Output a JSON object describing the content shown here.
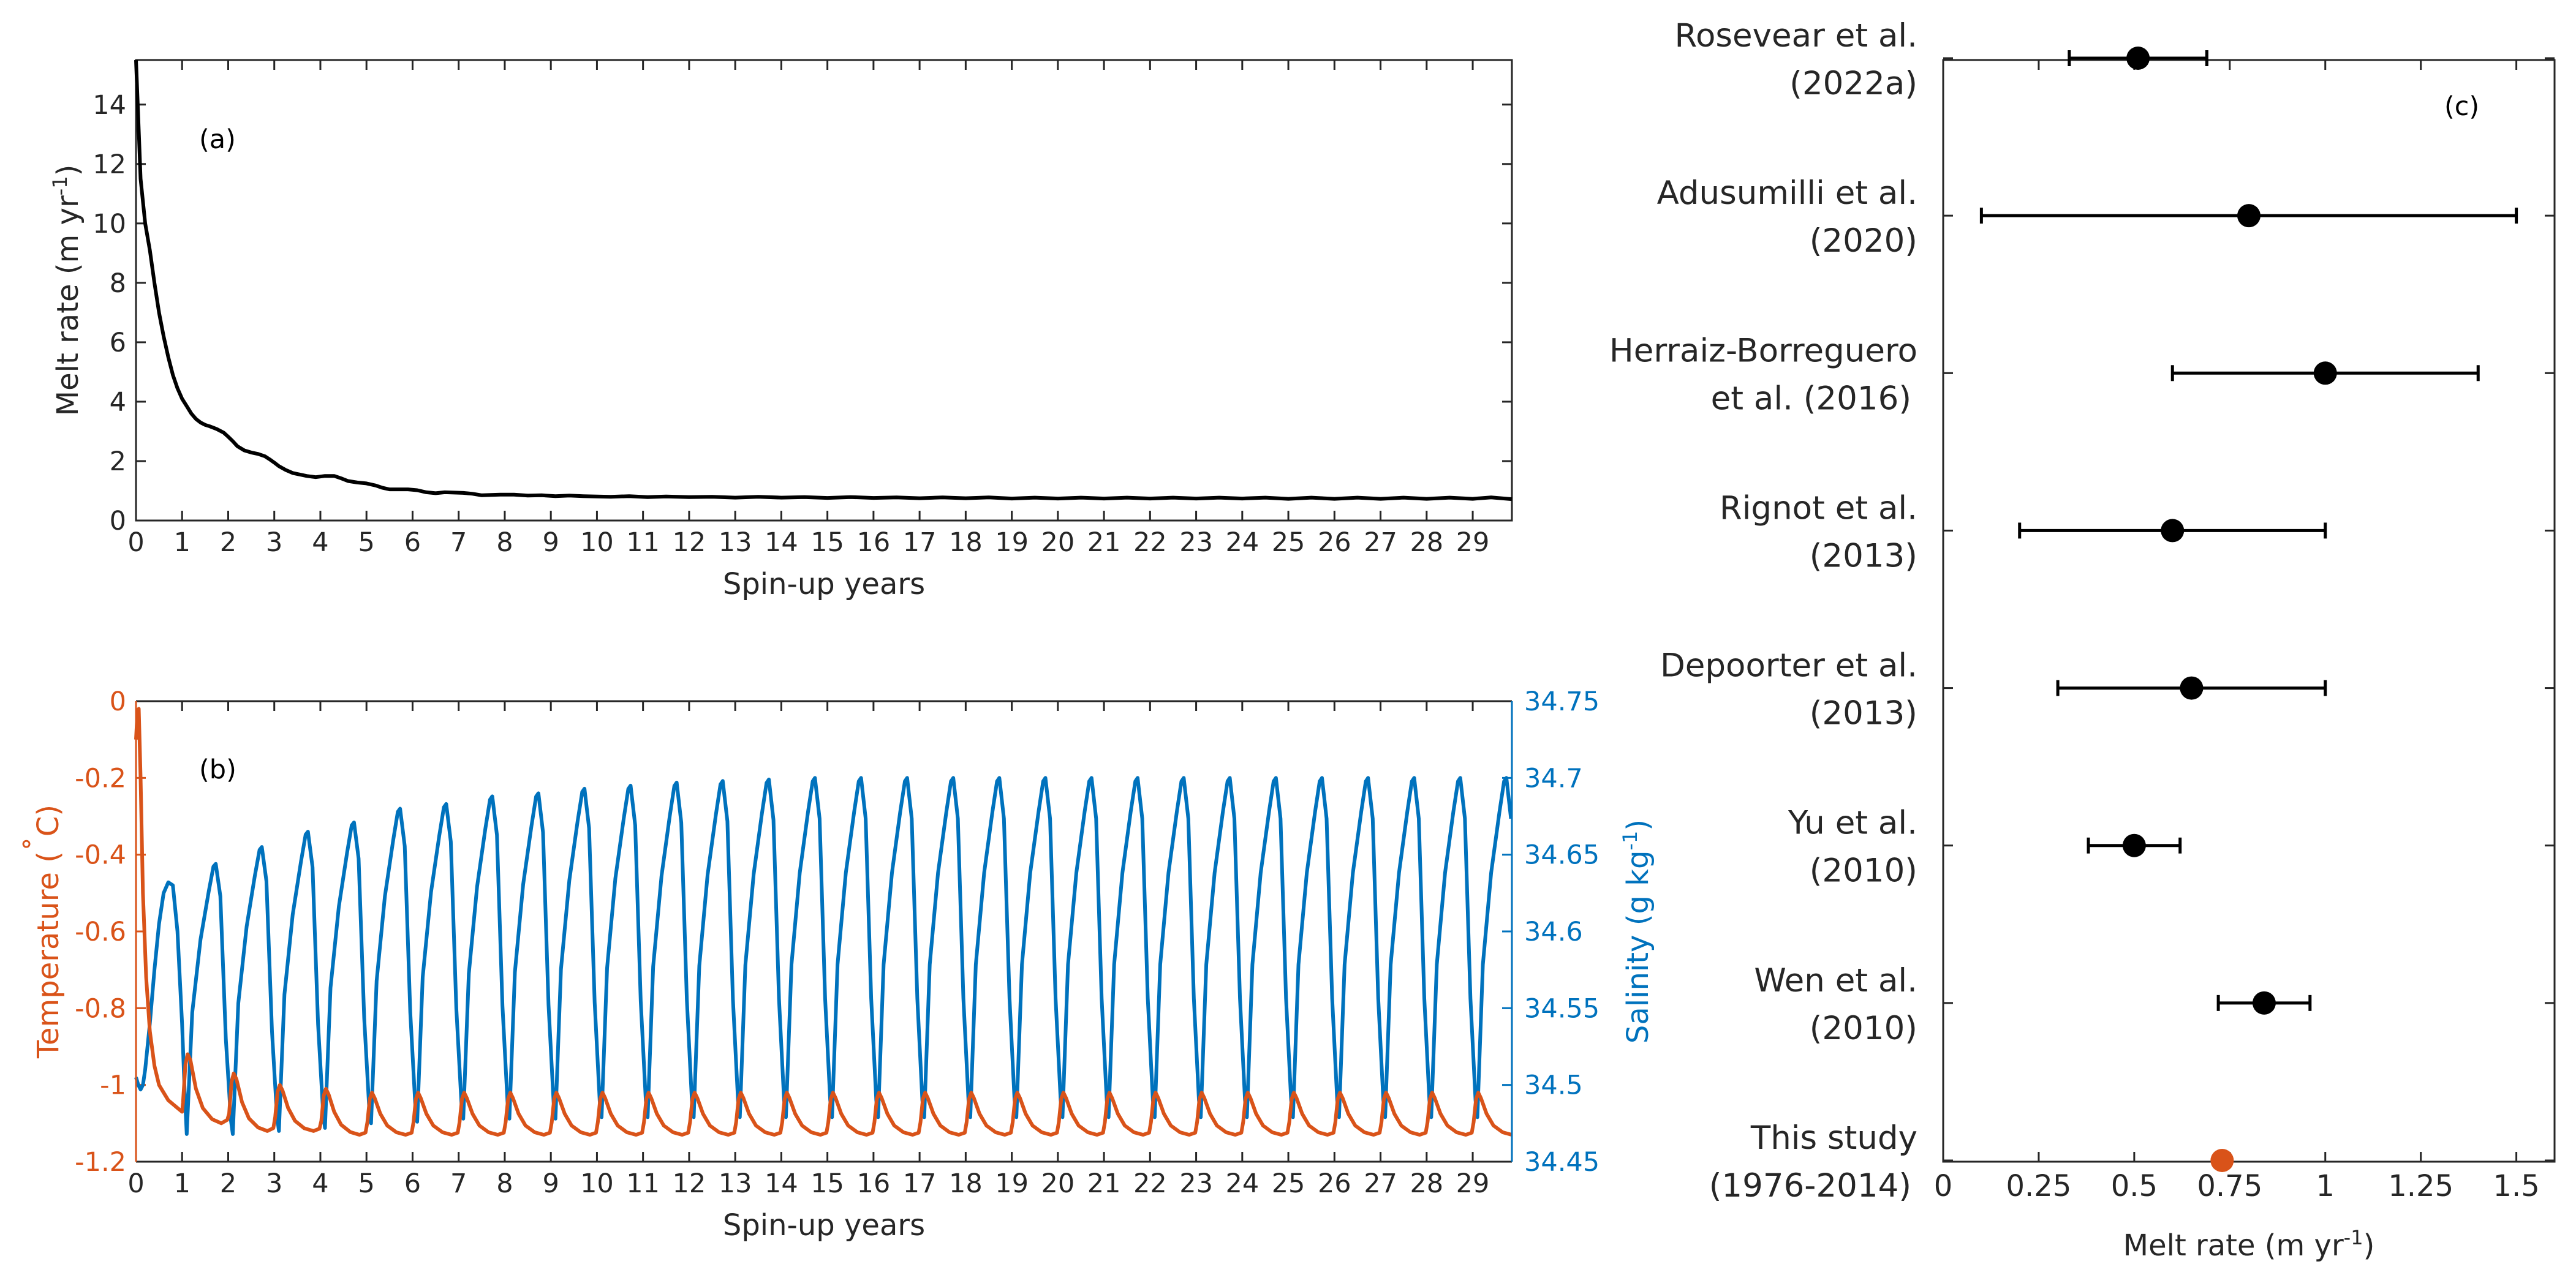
{
  "colors": {
    "axis": "#262626",
    "melt_line": "#000000",
    "temperature": "#D95319",
    "salinity": "#0072BD",
    "marker": "#000000",
    "this_study_marker": "#D95319"
  },
  "chart_data": [
    {
      "id": "a",
      "type": "line",
      "panel_label": "(a)",
      "xlabel": "Spin-up years",
      "ylabel": "Melt rate (m yr",
      "ylabel_sup": "-1",
      "ylabel_close": ")",
      "xlim": [
        0,
        29.85
      ],
      "ylim": [
        0,
        15.5
      ],
      "xticks": [
        0,
        1,
        2,
        3,
        4,
        5,
        6,
        7,
        8,
        9,
        10,
        11,
        12,
        13,
        14,
        15,
        16,
        17,
        18,
        19,
        20,
        21,
        22,
        23,
        24,
        25,
        26,
        27,
        28,
        29
      ],
      "yticks": [
        0,
        2,
        4,
        6,
        8,
        10,
        12,
        14
      ],
      "grid": false,
      "series": [
        {
          "x": [
            0,
            0.05,
            0.1,
            0.2,
            0.3,
            0.4,
            0.5,
            0.6,
            0.7,
            0.8,
            0.9,
            1.0,
            1.1,
            1.2,
            1.3,
            1.4,
            1.5,
            1.6,
            1.75,
            1.9,
            2.0,
            2.1,
            2.2,
            2.35,
            2.5,
            2.65,
            2.8,
            2.9,
            3.0,
            3.1,
            3.25,
            3.4,
            3.55,
            3.7,
            3.9,
            4.1,
            4.3,
            4.45,
            4.6,
            4.8,
            5.0,
            5.2,
            5.35,
            5.5,
            5.7,
            5.9,
            6.1,
            6.3,
            6.5,
            6.7,
            6.9,
            7.1,
            7.3,
            7.5,
            7.7,
            7.9,
            8.2,
            8.5,
            8.8,
            9.1,
            9.4,
            9.7,
            10.0,
            10.3,
            10.7,
            11.1,
            11.5,
            12.0,
            12.5,
            13.0,
            13.5,
            14.0,
            14.5,
            15.0,
            15.5,
            16.0,
            16.5,
            17.0,
            17.5,
            18.0,
            18.5,
            19.0,
            19.5,
            20.0,
            20.5,
            21.0,
            21.5,
            22.0,
            22.5,
            23.0,
            23.5,
            24.0,
            24.5,
            25.0,
            25.5,
            26.0,
            26.5,
            27.0,
            27.5,
            28.0,
            28.5,
            29.0,
            29.4,
            29.85
          ],
          "y": [
            15.5,
            13.5,
            11.5,
            10.0,
            9.1,
            8.0,
            7.0,
            6.2,
            5.5,
            4.9,
            4.45,
            4.1,
            3.85,
            3.6,
            3.42,
            3.3,
            3.22,
            3.17,
            3.08,
            2.96,
            2.82,
            2.67,
            2.5,
            2.36,
            2.29,
            2.24,
            2.16,
            2.06,
            1.95,
            1.83,
            1.7,
            1.6,
            1.55,
            1.5,
            1.46,
            1.5,
            1.5,
            1.42,
            1.33,
            1.28,
            1.25,
            1.18,
            1.1,
            1.05,
            1.05,
            1.05,
            1.02,
            0.95,
            0.92,
            0.95,
            0.94,
            0.93,
            0.9,
            0.85,
            0.86,
            0.87,
            0.87,
            0.84,
            0.85,
            0.82,
            0.84,
            0.82,
            0.81,
            0.8,
            0.82,
            0.79,
            0.81,
            0.79,
            0.8,
            0.77,
            0.8,
            0.77,
            0.79,
            0.76,
            0.79,
            0.76,
            0.78,
            0.75,
            0.78,
            0.75,
            0.78,
            0.74,
            0.77,
            0.74,
            0.77,
            0.74,
            0.77,
            0.74,
            0.77,
            0.74,
            0.77,
            0.74,
            0.77,
            0.73,
            0.77,
            0.73,
            0.77,
            0.73,
            0.77,
            0.73,
            0.77,
            0.73,
            0.78,
            0.72
          ]
        }
      ]
    },
    {
      "id": "b",
      "type": "line",
      "panel_label": "(b)",
      "xlabel": "Spin-up years",
      "xlim": [
        0,
        29.85
      ],
      "xticks": [
        0,
        1,
        2,
        3,
        4,
        5,
        6,
        7,
        8,
        9,
        10,
        11,
        12,
        13,
        14,
        15,
        16,
        17,
        18,
        19,
        20,
        21,
        22,
        23,
        24,
        25,
        26,
        27,
        28,
        29
      ],
      "grid": false,
      "left_axis": {
        "label": "Temperature (",
        "label_degree": "˚",
        "label_unit": "C)",
        "ylim": [
          -1.2,
          0
        ],
        "yticks": [
          0,
          -0.2,
          -0.4,
          -0.6,
          -0.8,
          -1,
          -1.2
        ],
        "ytick_labels": [
          "0",
          "-0.2",
          "-0.4",
          "-0.6",
          "-0.8",
          "-1",
          "-1.2"
        ]
      },
      "right_axis": {
        "label": "Salinity (g kg",
        "label_sup": "-1",
        "label_close": ")",
        "ylim": [
          34.45,
          34.75
        ],
        "yticks": [
          34.45,
          34.5,
          34.55,
          34.6,
          34.65,
          34.7,
          34.75
        ],
        "ytick_labels": [
          "34.45",
          "34.5",
          "34.55",
          "34.6",
          "34.65",
          "34.7",
          "34.75"
        ]
      },
      "temperature_series": {
        "x_start": 0,
        "initial": {
          "x": [
            0,
            0.03,
            0.06,
            0.1,
            0.15,
            0.22,
            0.3,
            0.4,
            0.5,
            0.6,
            0.7,
            0.8,
            0.9,
            1.0
          ],
          "y": [
            -0.1,
            -0.03,
            -0.02,
            -0.2,
            -0.5,
            -0.72,
            -0.86,
            -0.95,
            -1.0,
            -1.02,
            -1.04,
            -1.05,
            -1.06,
            -1.07
          ]
        },
        "cycle_peak_year_fraction": 0.12,
        "cycle_minima": [
          -1.1,
          -1.12,
          -1.12,
          -1.13,
          -1.13,
          -1.13,
          -1.13,
          -1.13,
          -1.13,
          -1.13,
          -1.13,
          -1.13,
          -1.13,
          -1.13,
          -1.13,
          -1.13,
          -1.13,
          -1.13,
          -1.13,
          -1.13,
          -1.13,
          -1.13,
          -1.13,
          -1.13,
          -1.13,
          -1.13,
          -1.13,
          -1.13,
          -1.13
        ],
        "cycle_peaks": [
          -0.92,
          -0.97,
          -1.0,
          -1.01,
          -1.02,
          -1.02,
          -1.02,
          -1.02,
          -1.02,
          -1.02,
          -1.02,
          -1.02,
          -1.02,
          -1.02,
          -1.02,
          -1.02,
          -1.02,
          -1.02,
          -1.02,
          -1.02,
          -1.02,
          -1.02,
          -1.02,
          -1.02,
          -1.02,
          -1.02,
          -1.02,
          -1.02,
          -1.02
        ]
      },
      "salinity_series": {
        "initial": {
          "x": [
            0,
            0.05,
            0.1,
            0.15,
            0.2,
            0.3,
            0.4,
            0.5,
            0.6,
            0.7,
            0.8,
            0.9,
            1.0,
            1.05,
            1.1
          ],
          "y": [
            34.505,
            34.5,
            34.497,
            34.5,
            34.51,
            34.54,
            34.575,
            34.605,
            34.625,
            34.632,
            34.63,
            34.6,
            34.54,
            34.5,
            34.468
          ]
        },
        "cycle_peak_year_fraction": 0.68,
        "cycle_peaks": [
          34.644,
          34.655,
          34.665,
          34.671,
          34.68,
          34.683,
          34.688,
          34.69,
          34.693,
          34.695,
          34.697,
          34.698,
          34.699,
          34.7,
          34.7,
          34.7,
          34.7,
          34.7,
          34.7,
          34.7,
          34.7,
          34.7,
          34.7,
          34.7,
          34.7,
          34.7,
          34.7,
          34.7,
          34.7
        ],
        "cycle_minima": [
          34.468,
          34.47,
          34.472,
          34.475,
          34.476,
          34.478,
          34.478,
          34.478,
          34.479,
          34.479,
          34.479,
          34.479,
          34.479,
          34.479,
          34.479,
          34.479,
          34.479,
          34.479,
          34.479,
          34.479,
          34.479,
          34.479,
          34.479,
          34.479,
          34.479,
          34.479,
          34.479,
          34.479,
          34.479
        ]
      }
    },
    {
      "id": "c",
      "type": "scatter",
      "panel_label": "(c)",
      "xlabel": "Melt rate (m yr",
      "xlabel_sup": "-1",
      "xlabel_close": ")",
      "xlim": [
        0,
        1.6
      ],
      "xticks": [
        0,
        0.25,
        0.5,
        0.75,
        1,
        1.25,
        1.5
      ],
      "xtick_labels": [
        "0",
        "0.25",
        "0.5",
        "0.75",
        "1",
        "1.25",
        "1.5"
      ],
      "grid": false,
      "studies": [
        {
          "line1": "Rosevear et al.",
          "line2": "(2022a)",
          "value": 0.51,
          "low": 0.33,
          "high": 0.69
        },
        {
          "line1": "Adusumilli et al.",
          "line2": "(2020)",
          "value": 0.8,
          "low": 0.1,
          "high": 1.5
        },
        {
          "line1": "Herraiz-Borreguero",
          "line2": "et al. (2016)",
          "value": 1.0,
          "low": 0.6,
          "high": 1.4
        },
        {
          "line1": "Rignot et al.",
          "line2": "(2013)",
          "value": 0.6,
          "low": 0.2,
          "high": 1.0
        },
        {
          "line1": "Depoorter et al.",
          "line2": "(2013)",
          "value": 0.65,
          "low": 0.3,
          "high": 1.0
        },
        {
          "line1": "Yu et al.",
          "line2": "(2010)",
          "value": 0.5,
          "low": 0.38,
          "high": 0.62
        },
        {
          "line1": "Wen et al.",
          "line2": "(2010)",
          "value": 0.84,
          "low": 0.72,
          "high": 0.96
        },
        {
          "line1": "This study",
          "line2": "(1976-2014)",
          "value": 0.73,
          "low": null,
          "high": null,
          "highlight": true
        }
      ]
    }
  ]
}
